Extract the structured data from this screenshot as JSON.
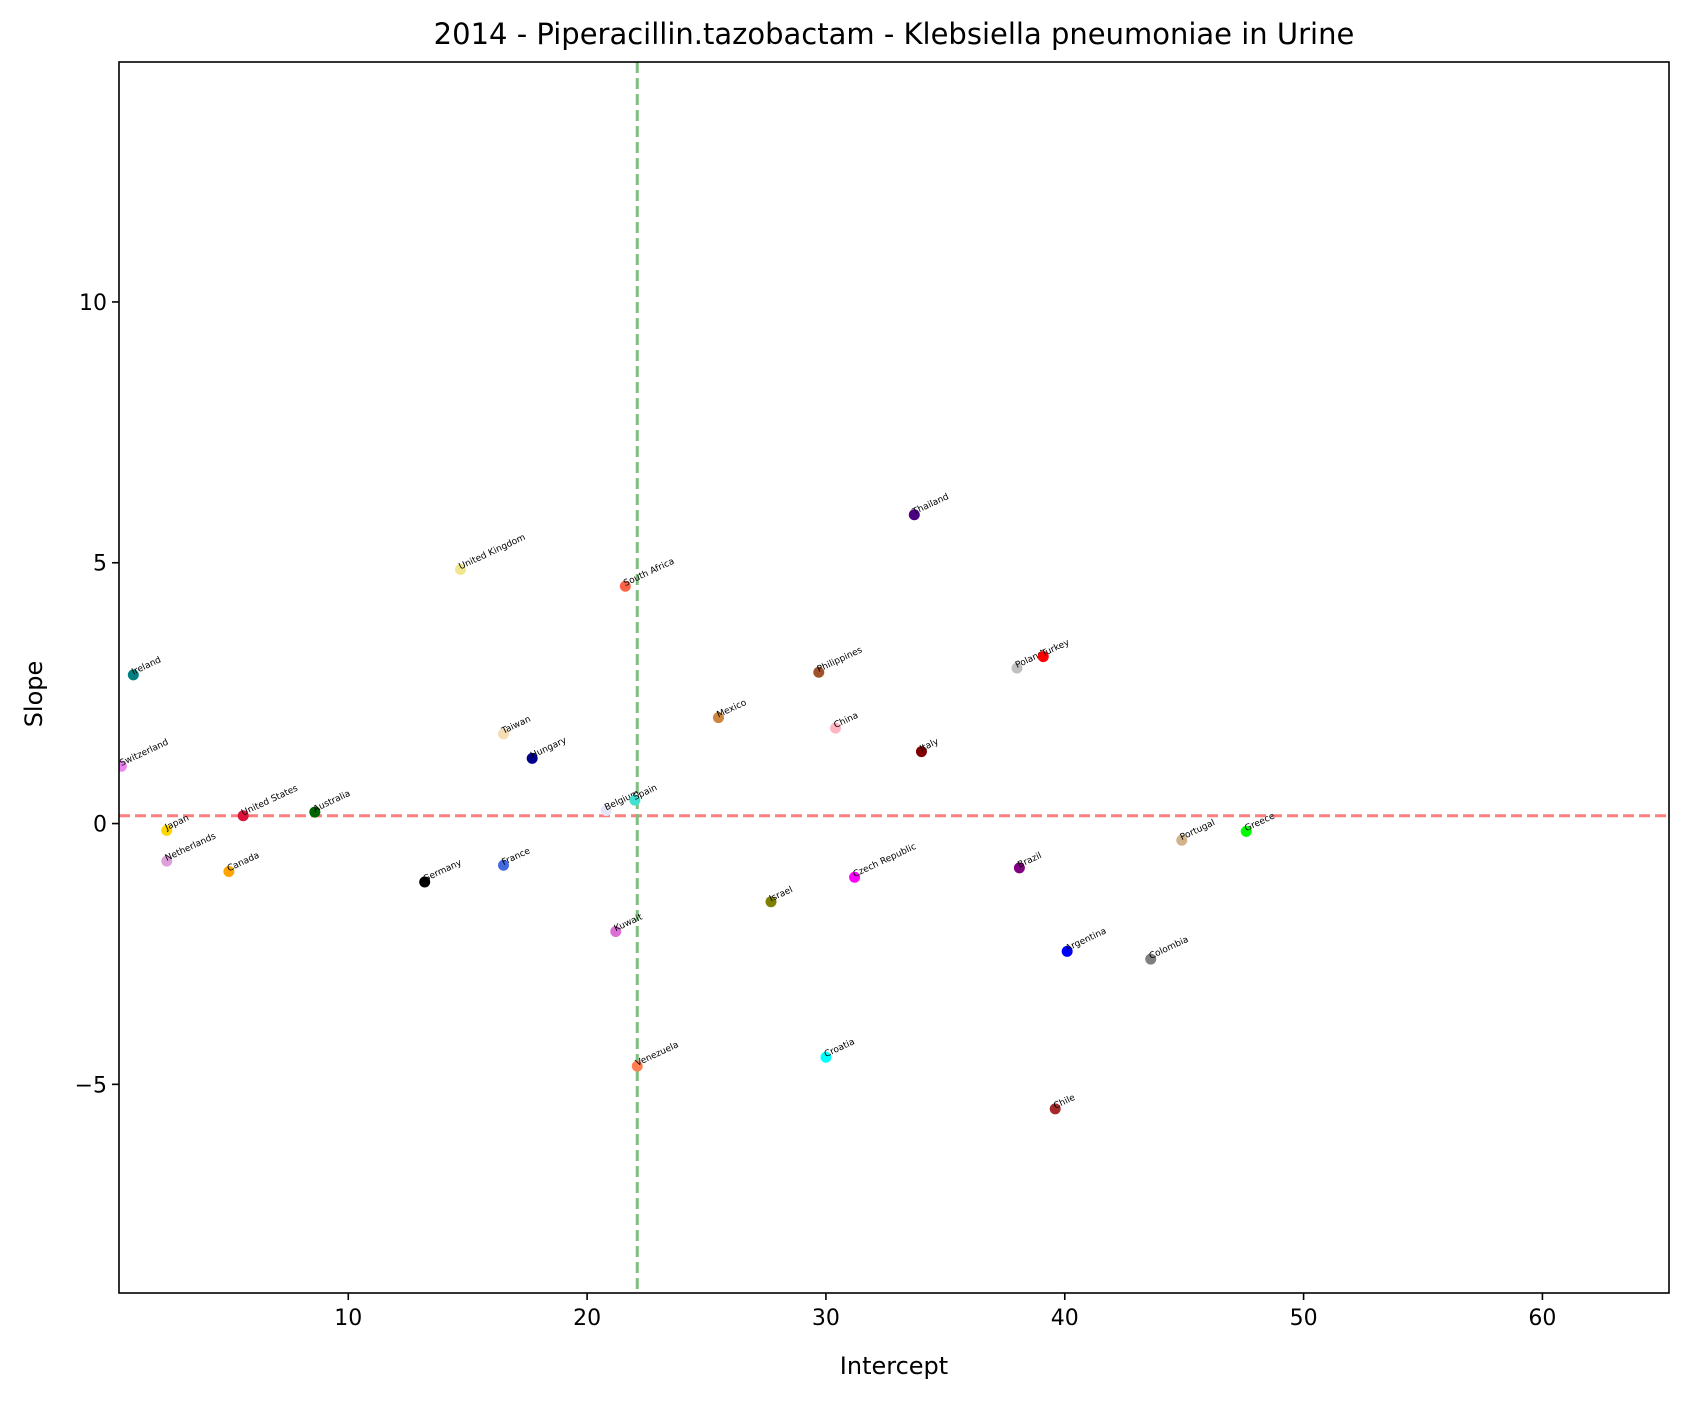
{
  "chart_data": {
    "type": "scatter",
    "title": "2014 - Piperacillin.tazobactam - Klebsiella pneumoniae in Urine",
    "xlabel": "Intercept",
    "ylabel": "Slope",
    "xlim": [
      0.4,
      65.3
    ],
    "ylim": [
      -9.0,
      14.6
    ],
    "xticks": [
      10,
      20,
      30,
      40,
      50,
      60
    ],
    "yticks": [
      -5,
      0,
      5,
      10
    ],
    "xtick_labels": [
      "10",
      "20",
      "30",
      "40",
      "50",
      "60"
    ],
    "ytick_labels": [
      "−5",
      "0",
      "5",
      "10"
    ],
    "grid": false,
    "reference_lines": {
      "horizontal": {
        "y": 0.15,
        "color": "#ff7f7f",
        "style": "dashed"
      },
      "vertical": {
        "x": 22.1,
        "color": "#7fbf7f",
        "style": "dashed"
      }
    },
    "points": [
      {
        "label": "Ireland",
        "x": 1.0,
        "y": 2.85,
        "color": "#008080"
      },
      {
        "label": "Switzerland",
        "x": 0.5,
        "y": 1.1,
        "color": "#ee82ee"
      },
      {
        "label": "Japan",
        "x": 2.4,
        "y": -0.13,
        "color": "#ffd700"
      },
      {
        "label": "Netherlands",
        "x": 2.4,
        "y": -0.72,
        "color": "#dda0dd"
      },
      {
        "label": "United States",
        "x": 5.6,
        "y": 0.15,
        "color": "#dc143c"
      },
      {
        "label": "Canada",
        "x": 5.0,
        "y": -0.92,
        "color": "#ffa500"
      },
      {
        "label": "Australia",
        "x": 8.6,
        "y": 0.22,
        "color": "#006400"
      },
      {
        "label": "Germany",
        "x": 13.2,
        "y": -1.12,
        "color": "#000000"
      },
      {
        "label": "United Kingdom",
        "x": 14.7,
        "y": 4.87,
        "color": "#f0e68c"
      },
      {
        "label": "Taiwan",
        "x": 16.5,
        "y": 1.72,
        "color": "#f5deb3"
      },
      {
        "label": "Hungary",
        "x": 17.7,
        "y": 1.25,
        "color": "#00008b"
      },
      {
        "label": "France",
        "x": 16.5,
        "y": -0.8,
        "color": "#4169e1"
      },
      {
        "label": "South Africa",
        "x": 21.6,
        "y": 4.55,
        "color": "#ff6347"
      },
      {
        "label": "Belgium",
        "x": 20.8,
        "y": 0.25,
        "color": "#e6e6fa"
      },
      {
        "label": "Spain",
        "x": 22.0,
        "y": 0.45,
        "color": "#40e0d0"
      },
      {
        "label": "Kuwait",
        "x": 21.2,
        "y": -2.07,
        "color": "#da70d6"
      },
      {
        "label": "Venezuela",
        "x": 22.1,
        "y": -4.65,
        "color": "#ff7f50"
      },
      {
        "label": "Mexico",
        "x": 25.5,
        "y": 2.03,
        "color": "#cd853f"
      },
      {
        "label": "Israel",
        "x": 27.7,
        "y": -1.5,
        "color": "#808000"
      },
      {
        "label": "Philippines",
        "x": 29.7,
        "y": 2.9,
        "color": "#a0522d"
      },
      {
        "label": "China",
        "x": 30.4,
        "y": 1.83,
        "color": "#ffb6c1"
      },
      {
        "label": "Croatia",
        "x": 30.0,
        "y": -4.48,
        "color": "#00ffff"
      },
      {
        "label": "Czech Republic",
        "x": 31.2,
        "y": -1.03,
        "color": "#ff00ff"
      },
      {
        "label": "Thailand",
        "x": 33.7,
        "y": 5.92,
        "color": "#4b0082"
      },
      {
        "label": "Italy",
        "x": 34.0,
        "y": 1.38,
        "color": "#800000"
      },
      {
        "label": "Poland",
        "x": 38.0,
        "y": 2.98,
        "color": "#c0c0c0"
      },
      {
        "label": "Turkey",
        "x": 39.1,
        "y": 3.2,
        "color": "#ff0000"
      },
      {
        "label": "Brazil",
        "x": 38.1,
        "y": -0.85,
        "color": "#800080"
      },
      {
        "label": "Argentina",
        "x": 40.1,
        "y": -2.45,
        "color": "#0000ff"
      },
      {
        "label": "Chile",
        "x": 39.6,
        "y": -5.47,
        "color": "#a52a2a"
      },
      {
        "label": "Colombia",
        "x": 43.6,
        "y": -2.6,
        "color": "#808080"
      },
      {
        "label": "Portugal",
        "x": 44.9,
        "y": -0.32,
        "color": "#d2b48c"
      },
      {
        "label": "Greece",
        "x": 47.6,
        "y": -0.15,
        "color": "#00ff00"
      }
    ]
  }
}
